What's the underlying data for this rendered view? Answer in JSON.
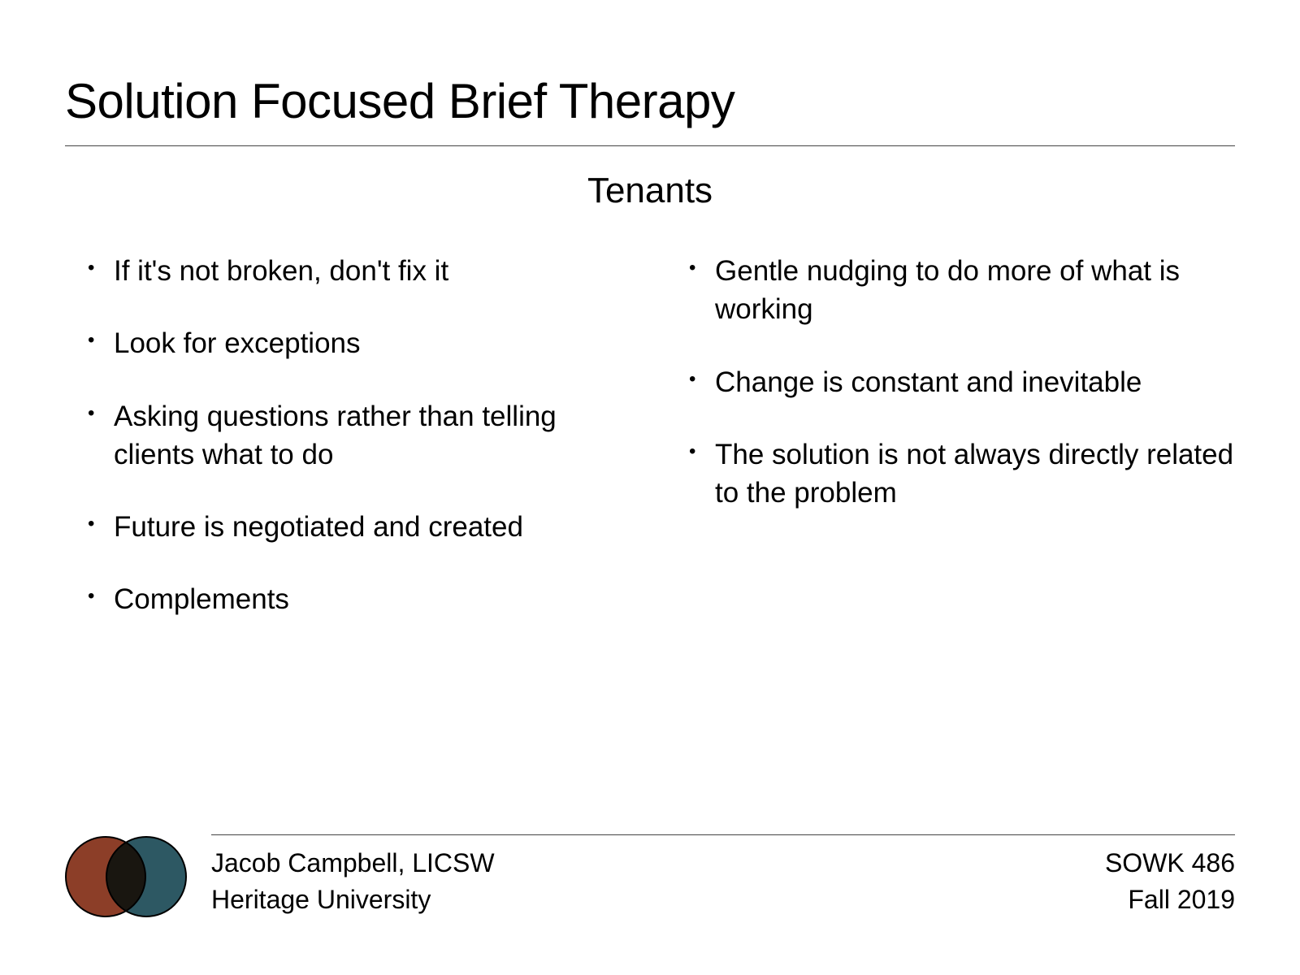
{
  "slide": {
    "title": "Solution Focused Brief Therapy",
    "subtitle": "Tenants",
    "background_color": "#ffffff",
    "text_color": "#000000",
    "title_fontsize": 60,
    "subtitle_fontsize": 44,
    "bullet_fontsize": 35,
    "divider_color": "#444444"
  },
  "bullets": {
    "left": [
      "If it's not broken, don't fix it",
      "Look for exceptions",
      "Asking questions rather than telling clients what to do",
      "Future is negotiated and created",
      "Complements"
    ],
    "right": [
      "Gentle nudging to do more of what is working",
      "Change is constant and inevitable",
      "The solution is not always directly related to the problem"
    ]
  },
  "footer": {
    "author": "Jacob Campbell, LICSW",
    "institution": "Heritage University",
    "course": "SOWK 486",
    "term": "Fall 2019",
    "footer_fontsize": 32
  },
  "logo": {
    "circle1_color": "#8c3e28",
    "circle2_color": "#2d5863",
    "border_color": "#000000",
    "diameter": 100,
    "overlap": 50
  }
}
